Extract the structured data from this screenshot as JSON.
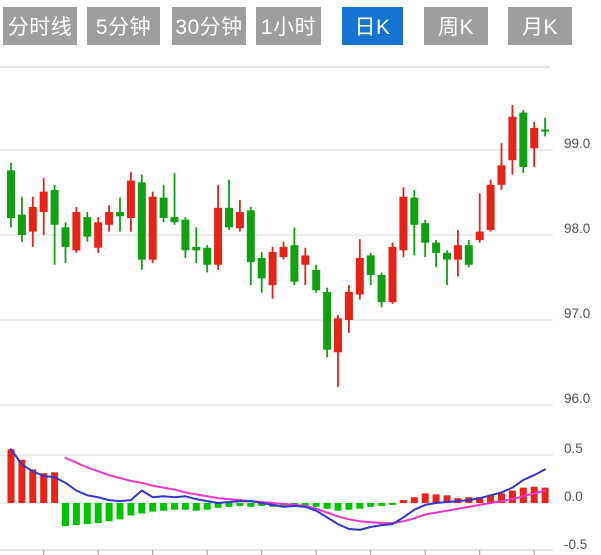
{
  "tabs": [
    {
      "label": "分时线",
      "active": false
    },
    {
      "label": "5分钟",
      "active": false
    },
    {
      "label": "30分钟",
      "active": false
    },
    {
      "label": "1小时",
      "active": false
    },
    {
      "label": "日K",
      "active": true
    },
    {
      "label": "周K",
      "active": false
    },
    {
      "label": "月K",
      "active": false
    }
  ],
  "colors": {
    "up": "#e32418",
    "down": "#12a012",
    "macd_up": "#e8231a",
    "macd_down": "#00c400",
    "dif_line": "#3338cc",
    "dea_line": "#ee35cd",
    "tab_bg": "#9e9e9e",
    "tab_active_bg": "#1574cf",
    "grid": "#dcdcdc",
    "border": "#c9c9c9",
    "tick": "#999999",
    "label_text": "#4f4f4f"
  },
  "chart_data": {
    "type": "candlestick",
    "x_count": 50,
    "legend": "none",
    "grid": "horizontal-only",
    "panels": [
      {
        "name": "price",
        "ylim": [
          95.9,
          100.0
        ],
        "gridline_values": [
          99.0,
          98.0,
          97.0,
          96.0
        ],
        "tick_labels": [
          "99.0",
          "98.0",
          "97.0",
          "96.0"
        ],
        "up_means": "close>open drawn red, close<open drawn green",
        "ohlc": [
          [
            98.76,
            98.85,
            98.09,
            98.2
          ],
          [
            98.24,
            98.45,
            97.92,
            98.0
          ],
          [
            98.04,
            98.45,
            97.86,
            98.33
          ],
          [
            98.27,
            98.67,
            98.0,
            98.51
          ],
          [
            98.53,
            98.59,
            97.65,
            98.12
          ],
          [
            98.09,
            98.15,
            97.67,
            97.86
          ],
          [
            97.82,
            98.33,
            97.79,
            98.27
          ],
          [
            98.21,
            98.27,
            97.92,
            97.98
          ],
          [
            97.85,
            98.21,
            97.79,
            98.15
          ],
          [
            98.12,
            98.35,
            98.04,
            98.27
          ],
          [
            98.27,
            98.44,
            98.04,
            98.22
          ],
          [
            98.2,
            98.74,
            98.04,
            98.64
          ],
          [
            98.62,
            98.71,
            97.59,
            97.71
          ],
          [
            97.71,
            98.51,
            97.67,
            98.45
          ],
          [
            98.44,
            98.59,
            98.15,
            98.2
          ],
          [
            98.21,
            98.73,
            98.12,
            98.15
          ],
          [
            98.18,
            98.21,
            97.73,
            97.82
          ],
          [
            97.86,
            98.09,
            97.67,
            97.82
          ],
          [
            97.85,
            97.88,
            97.56,
            97.65
          ],
          [
            97.65,
            98.59,
            97.59,
            98.32
          ],
          [
            98.32,
            98.65,
            98.06,
            98.09
          ],
          [
            98.08,
            98.41,
            98.04,
            98.27
          ],
          [
            98.29,
            98.33,
            97.41,
            97.68
          ],
          [
            97.73,
            97.8,
            97.32,
            97.49
          ],
          [
            97.41,
            97.86,
            97.25,
            97.8
          ],
          [
            97.74,
            97.92,
            97.71,
            97.86
          ],
          [
            97.88,
            98.09,
            97.41,
            97.45
          ],
          [
            97.65,
            97.85,
            97.41,
            97.76
          ],
          [
            97.59,
            97.65,
            97.32,
            97.35
          ],
          [
            97.33,
            97.38,
            96.56,
            96.65
          ],
          [
            96.62,
            97.06,
            96.21,
            97.02
          ],
          [
            97.0,
            97.41,
            96.85,
            97.33
          ],
          [
            97.3,
            97.95,
            97.24,
            97.73
          ],
          [
            97.76,
            97.79,
            97.41,
            97.53
          ],
          [
            97.53,
            97.56,
            97.15,
            97.21
          ],
          [
            97.21,
            97.91,
            97.19,
            97.86
          ],
          [
            97.82,
            98.56,
            97.74,
            98.45
          ],
          [
            98.44,
            98.53,
            97.76,
            98.12
          ],
          [
            98.14,
            98.18,
            97.74,
            97.91
          ],
          [
            97.91,
            97.94,
            97.62,
            97.79
          ],
          [
            97.79,
            97.82,
            97.41,
            97.71
          ],
          [
            97.71,
            98.06,
            97.51,
            97.88
          ],
          [
            97.88,
            97.94,
            97.62,
            97.65
          ],
          [
            97.94,
            98.49,
            97.91,
            98.04
          ],
          [
            98.06,
            98.65,
            98.04,
            98.59
          ],
          [
            98.59,
            99.08,
            98.53,
            98.82
          ],
          [
            98.88,
            99.53,
            98.71,
            99.39
          ],
          [
            99.44,
            99.47,
            98.73,
            98.8
          ],
          [
            99.02,
            99.33,
            98.8,
            99.26
          ],
          [
            99.24,
            99.38,
            99.16,
            99.22
          ]
        ]
      },
      {
        "name": "macd",
        "ylim": [
          -0.5,
          0.5
        ],
        "gridline_values": [
          0.5,
          0.0,
          -0.5
        ],
        "tick_labels": [
          "0.5",
          "0.0",
          "-0.5"
        ],
        "histogram": [
          0.56,
          0.45,
          0.35,
          0.31,
          0.32,
          -0.24,
          -0.23,
          -0.22,
          -0.21,
          -0.19,
          -0.17,
          -0.13,
          -0.11,
          -0.09,
          -0.08,
          -0.07,
          -0.07,
          -0.08,
          -0.07,
          -0.05,
          -0.04,
          -0.03,
          -0.04,
          -0.03,
          -0.04,
          -0.03,
          -0.04,
          -0.03,
          -0.04,
          -0.06,
          -0.08,
          -0.07,
          -0.06,
          -0.04,
          -0.03,
          -0.02,
          0.03,
          0.06,
          0.1,
          0.09,
          0.08,
          0.05,
          0.06,
          0.06,
          0.08,
          0.1,
          0.13,
          0.16,
          0.17,
          0.16
        ],
        "dif": [
          0.56,
          0.4,
          0.33,
          0.28,
          0.27,
          0.21,
          0.13,
          0.08,
          0.06,
          0.03,
          0.02,
          0.03,
          0.13,
          0.06,
          0.07,
          0.06,
          0.07,
          0.04,
          0.02,
          0.0,
          0.01,
          0.02,
          0.02,
          0.0,
          -0.02,
          -0.04,
          -0.03,
          -0.04,
          -0.08,
          -0.15,
          -0.22,
          -0.27,
          -0.28,
          -0.25,
          -0.23,
          -0.22,
          -0.15,
          -0.07,
          -0.02,
          0.0,
          0.01,
          0.02,
          0.03,
          0.05,
          0.08,
          0.11,
          0.16,
          0.24,
          0.29,
          0.35
        ],
        "dea": [
          null,
          null,
          null,
          null,
          null,
          0.47,
          0.42,
          0.37,
          0.33,
          0.29,
          0.26,
          0.23,
          0.21,
          0.18,
          0.16,
          0.14,
          0.11,
          0.09,
          0.07,
          0.05,
          0.04,
          0.03,
          0.02,
          0.01,
          0.0,
          -0.01,
          -0.02,
          -0.03,
          -0.06,
          -0.1,
          -0.14,
          -0.17,
          -0.19,
          -0.2,
          -0.21,
          -0.21,
          -0.19,
          -0.16,
          -0.12,
          -0.1,
          -0.08,
          -0.06,
          -0.04,
          -0.02,
          0.0,
          0.02,
          0.04,
          0.07,
          0.1,
          0.13
        ]
      }
    ]
  }
}
